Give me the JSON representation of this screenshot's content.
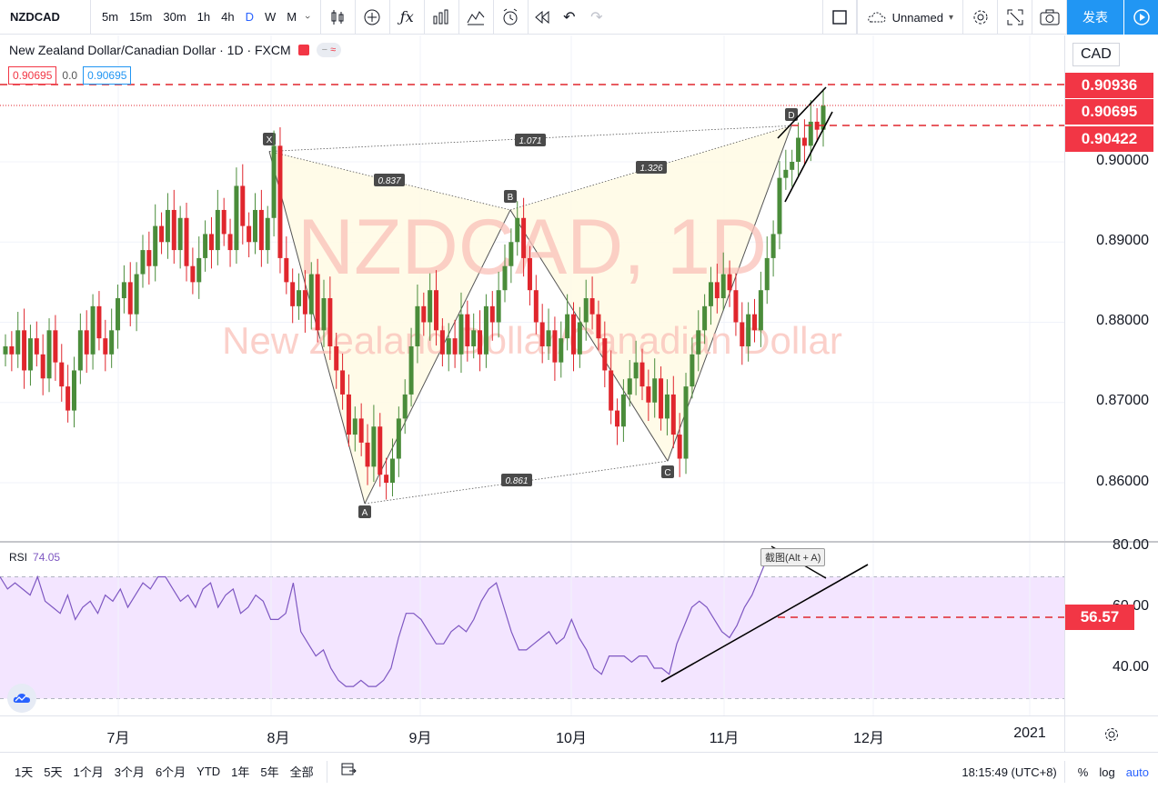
{
  "toolbar": {
    "symbol": "NZDCAD",
    "intervals": [
      "5m",
      "15m",
      "30m",
      "1h",
      "4h",
      "D",
      "W",
      "M"
    ],
    "active_interval": "D",
    "layout_name": "Unnamed",
    "publish_label": "发表"
  },
  "legend": {
    "title": "New Zealand Dollar/Canadian Dollar · 1D · FXCM",
    "bid": "0.90695",
    "spread": "0.0",
    "ask": "0.90695"
  },
  "watermark": {
    "line1": "NZDCAD, 1D",
    "line2": "New Zealand Dollar/Canadian Dollar"
  },
  "price_axis": {
    "currency": "CAD",
    "ticks": [
      "0.90000",
      "0.89000",
      "0.88000",
      "0.87000",
      "0.86000"
    ],
    "tags": [
      "0.90936",
      "0.90695",
      "0.90422"
    ]
  },
  "pattern_labels": {
    "points": [
      "X",
      "A",
      "B",
      "C",
      "D"
    ],
    "ratios": [
      "0.837",
      "1.071",
      "1.326",
      "0.861"
    ]
  },
  "rsi": {
    "name": "RSI",
    "value": "74.05",
    "ticks": [
      "80.00",
      "60.00",
      "40.00"
    ],
    "tag": "56.57",
    "tooltip": "截图(Alt + A)"
  },
  "time_axis": {
    "labels": [
      "7月",
      "8月",
      "9月",
      "10月",
      "11月",
      "12月",
      "2021"
    ]
  },
  "bottom_bar": {
    "ranges": [
      "1天",
      "5天",
      "1个月",
      "3个月",
      "6个月",
      "YTD",
      "1年",
      "5年",
      "全部"
    ],
    "clock": "18:15:49 (UTC+8)",
    "percent": "%",
    "log": "log",
    "auto": "auto"
  },
  "colors": {
    "up": "#4a8c3a",
    "down": "#e0262d",
    "accent": "#2196f3",
    "rsi": "#7e57c2",
    "rsi_band": "#f3e5ff"
  },
  "chart_data": {
    "type": "candlestick",
    "symbol": "NZDCAD",
    "interval": "1D",
    "ylim": [
      0.854,
      0.912
    ],
    "series_close": [
      0.877,
      0.876,
      0.879,
      0.874,
      0.878,
      0.876,
      0.873,
      0.879,
      0.875,
      0.872,
      0.869,
      0.874,
      0.879,
      0.876,
      0.882,
      0.878,
      0.876,
      0.879,
      0.883,
      0.885,
      0.881,
      0.886,
      0.889,
      0.887,
      0.892,
      0.89,
      0.894,
      0.889,
      0.893,
      0.887,
      0.885,
      0.888,
      0.891,
      0.889,
      0.894,
      0.891,
      0.889,
      0.897,
      0.892,
      0.89,
      0.894,
      0.889,
      0.893,
      0.902,
      0.888,
      0.885,
      0.882,
      0.884,
      0.881,
      0.886,
      0.879,
      0.883,
      0.877,
      0.874,
      0.871,
      0.866,
      0.868,
      0.865,
      0.862,
      0.867,
      0.861,
      0.86,
      0.863,
      0.868,
      0.871,
      0.877,
      0.882,
      0.88,
      0.884,
      0.879,
      0.876,
      0.878,
      0.876,
      0.881,
      0.877,
      0.879,
      0.876,
      0.882,
      0.88,
      0.884,
      0.887,
      0.89,
      0.893,
      0.888,
      0.884,
      0.88,
      0.877,
      0.879,
      0.875,
      0.878,
      0.881,
      0.876,
      0.88,
      0.883,
      0.881,
      0.878,
      0.874,
      0.869,
      0.867,
      0.871,
      0.873,
      0.875,
      0.872,
      0.87,
      0.873,
      0.868,
      0.871,
      0.866,
      0.863,
      0.872,
      0.876,
      0.879,
      0.882,
      0.885,
      0.883,
      0.886,
      0.884,
      0.88,
      0.877,
      0.881,
      0.879,
      0.884,
      0.888,
      0.891,
      0.898,
      0.899,
      0.9,
      0.903,
      0.902,
      0.905,
      0.904,
      0.907
    ],
    "rsi_values": [
      70,
      66,
      68,
      66,
      64,
      70,
      62,
      60,
      58,
      64,
      56,
      60,
      62,
      58,
      64,
      62,
      66,
      60,
      64,
      68,
      66,
      70,
      70,
      66,
      62,
      64,
      60,
      66,
      68,
      60,
      64,
      66,
      58,
      60,
      64,
      62,
      56,
      56,
      58,
      68,
      52,
      48,
      44,
      46,
      40,
      36,
      34,
      34,
      36,
      34,
      34,
      36,
      40,
      50,
      58,
      58,
      56,
      52,
      48,
      48,
      52,
      54,
      52,
      56,
      62,
      66,
      68,
      60,
      52,
      46,
      46,
      48,
      50,
      52,
      48,
      50,
      56,
      50,
      46,
      40,
      38,
      44,
      44,
      44,
      42,
      44,
      44,
      40,
      40,
      38,
      48,
      54,
      60,
      62,
      60,
      56,
      52,
      50,
      54,
      60,
      64,
      70,
      76,
      76,
      76,
      74
    ]
  }
}
